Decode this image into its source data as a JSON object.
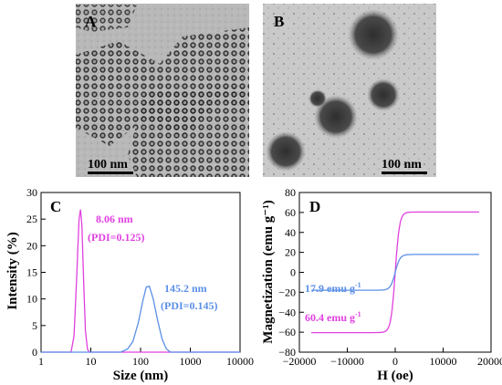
{
  "figure": {
    "images": [
      {
        "letter": "A",
        "scale_bar": "100 nm"
      },
      {
        "letter": "B",
        "scale_bar": "100 nm"
      }
    ]
  },
  "chart_data": [
    {
      "panel": "C",
      "type": "line",
      "xlabel": "Size (nm)",
      "ylabel": "Intensity (%)",
      "xscale": "log",
      "xlim": [
        1,
        10000
      ],
      "ylim": [
        0,
        30
      ],
      "xticks": [
        "1",
        "10",
        "100",
        "1000",
        "10000"
      ],
      "yticks": [
        "0",
        "5",
        "10",
        "15",
        "20",
        "25",
        "30"
      ],
      "series": [
        {
          "color": "#e040e0",
          "x": [
            4.0,
            4.6,
            5.2,
            5.8,
            6.2,
            6.6,
            7.2,
            7.8,
            8.6,
            9.5
          ],
          "y": [
            0,
            3,
            14,
            25,
            26.8,
            24,
            13,
            4,
            0.5,
            0
          ]
        },
        {
          "color": "#5b8fe6",
          "x": [
            40,
            55,
            70,
            90,
            110,
            130,
            150,
            180,
            220,
            270,
            330,
            400
          ],
          "y": [
            0,
            0.6,
            2,
            5.5,
            9.5,
            12.2,
            12.4,
            10,
            6,
            2.5,
            0.6,
            0
          ]
        }
      ],
      "annotations": [
        {
          "label": "8.06 nm",
          "sub": "(PDI=0.125)",
          "color": "#e040e0"
        },
        {
          "label": "145.2 nm",
          "sub": "(PDI=0.145)",
          "color": "#5b8fe6"
        }
      ]
    },
    {
      "panel": "D",
      "type": "line",
      "xlabel": "H (oe)",
      "ylabel": "Magnetization (emu g⁻¹)",
      "xlim": [
        -20000,
        20000
      ],
      "ylim": [
        -80,
        80
      ],
      "xticks": [
        "−20000",
        "−10000",
        "0",
        "10000",
        "20000"
      ],
      "yticks": [
        "−80",
        "−60",
        "−40",
        "−20",
        "0",
        "20",
        "40",
        "60",
        "80"
      ],
      "series": [
        {
          "color": "#e040e0",
          "saturation": 60.4,
          "h_scale": 900,
          "x_range": [
            -17500,
            17500
          ]
        },
        {
          "color": "#5b8fe6",
          "saturation": 17.9,
          "h_scale": 1000,
          "x_range": [
            -17500,
            17500
          ]
        }
      ],
      "annotations": [
        {
          "label": "17.9 emu g",
          "sup": "-1",
          "color": "#5b8fe6"
        },
        {
          "label": "60.4 emu g",
          "sup": "-1",
          "color": "#e040e0"
        }
      ]
    }
  ]
}
